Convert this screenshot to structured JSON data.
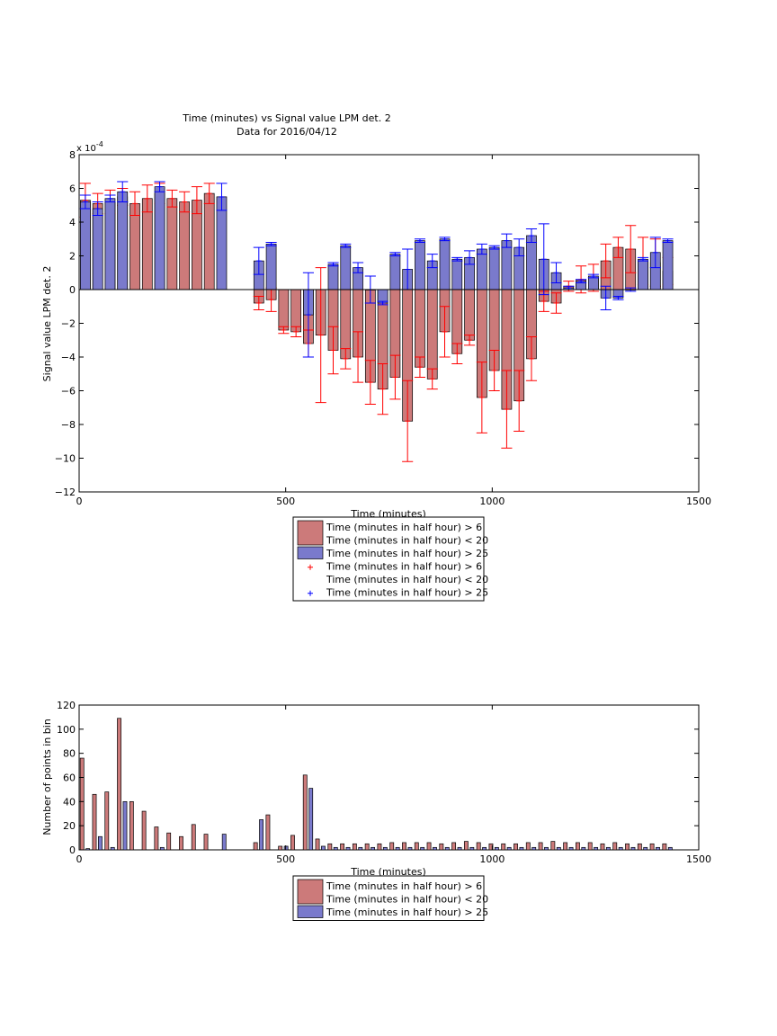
{
  "chart_data": [
    {
      "type": "bar",
      "title": "Time (minutes) vs Signal value LPM det. 2",
      "subtitle": "Data for 2016/04/12",
      "xlabel": "Time (minutes)",
      "ylabel": "Signal value LPM det. 2",
      "multiplier": "x 10",
      "multiplier_exp": "-4",
      "xlim": [
        0,
        1500
      ],
      "ylim": [
        -12,
        8
      ],
      "xticks": [
        0,
        500,
        1000,
        1500
      ],
      "yticks": [
        -12,
        -10,
        -8,
        -6,
        -4,
        -2,
        0,
        2,
        4,
        6,
        8
      ],
      "ytick_labels": [
        "−12",
        "−10",
        "−8",
        "−6",
        "−4",
        "−2",
        "0",
        "2",
        "4",
        "6",
        "8"
      ],
      "grid": false,
      "bar_width": 24,
      "legend_position": "below",
      "legend": [
        {
          "label": "Time (minutes in half hour) > 6",
          "kind": "swatch",
          "color": "#cc7a7a"
        },
        {
          "label": "Time (minutes in half hour) < 20",
          "kind": "none"
        },
        {
          "label": "Time (minutes in half hour) > 25",
          "kind": "swatch",
          "color": "#7a7acc"
        },
        {
          "label": "Time (minutes in half hour) > 6",
          "kind": "marker",
          "color": "#ff0000"
        },
        {
          "label": "Time (minutes in half hour) < 20",
          "kind": "none"
        },
        {
          "label": "Time (minutes in half hour) > 25",
          "kind": "marker",
          "color": "#0000ff"
        }
      ],
      "series": [
        {
          "name": "Time (minutes in half hour) > 6 / < 20",
          "color": "#cc7a7a",
          "error_color": "#ff0000",
          "points": [
            {
              "x": 15,
              "y": 5.3,
              "err": 1.0
            },
            {
              "x": 45,
              "y": 5.1,
              "err": 0.6
            },
            {
              "x": 75,
              "y": 5.2,
              "err": 0.7
            },
            {
              "x": 105,
              "y": 5.5,
              "err": 0.5
            },
            {
              "x": 135,
              "y": 5.1,
              "err": 0.7
            },
            {
              "x": 165,
              "y": 5.4,
              "err": 0.8
            },
            {
              "x": 195,
              "y": 5.7,
              "err": 0.6
            },
            {
              "x": 225,
              "y": 5.4,
              "err": 0.5
            },
            {
              "x": 255,
              "y": 5.2,
              "err": 0.6
            },
            {
              "x": 285,
              "y": 5.3,
              "err": 0.8
            },
            {
              "x": 315,
              "y": 5.7,
              "err": 0.6
            },
            {
              "x": 435,
              "y": -0.8,
              "err": 0.4
            },
            {
              "x": 465,
              "y": -0.6,
              "err": 0.7
            },
            {
              "x": 495,
              "y": -2.4,
              "err": 0.2
            },
            {
              "x": 525,
              "y": -2.5,
              "err": 0.3
            },
            {
              "x": 555,
              "y": -3.2,
              "err": 0.8
            },
            {
              "x": 585,
              "y": -2.7,
              "err": 4.0
            },
            {
              "x": 615,
              "y": -3.6,
              "err": 1.4
            },
            {
              "x": 645,
              "y": -4.1,
              "err": 0.6
            },
            {
              "x": 675,
              "y": -4.0,
              "err": 1.5
            },
            {
              "x": 705,
              "y": -5.5,
              "err": 1.3
            },
            {
              "x": 735,
              "y": -5.9,
              "err": 1.5
            },
            {
              "x": 765,
              "y": -5.2,
              "err": 1.3
            },
            {
              "x": 795,
              "y": -7.8,
              "err": 2.4
            },
            {
              "x": 825,
              "y": -4.6,
              "err": 0.6
            },
            {
              "x": 855,
              "y": -5.3,
              "err": 0.6
            },
            {
              "x": 885,
              "y": -2.5,
              "err": 1.5
            },
            {
              "x": 915,
              "y": -3.8,
              "err": 0.6
            },
            {
              "x": 945,
              "y": -3.0,
              "err": 0.3
            },
            {
              "x": 975,
              "y": -6.4,
              "err": 2.1
            },
            {
              "x": 1005,
              "y": -4.8,
              "err": 1.2
            },
            {
              "x": 1035,
              "y": -7.1,
              "err": 2.3
            },
            {
              "x": 1065,
              "y": -6.6,
              "err": 1.8
            },
            {
              "x": 1095,
              "y": -4.1,
              "err": 1.3
            },
            {
              "x": 1125,
              "y": -0.7,
              "err": 0.6
            },
            {
              "x": 1155,
              "y": -0.8,
              "err": 0.6
            },
            {
              "x": 1185,
              "y": 0.2,
              "err": 0.3
            },
            {
              "x": 1215,
              "y": 0.6,
              "err": 0.8
            },
            {
              "x": 1245,
              "y": 0.7,
              "err": 0.8
            },
            {
              "x": 1275,
              "y": 1.7,
              "err": 1.0
            },
            {
              "x": 1305,
              "y": 2.5,
              "err": 0.6
            },
            {
              "x": 1335,
              "y": 2.4,
              "err": 1.4
            },
            {
              "x": 1365,
              "y": 1.7,
              "err": 1.4
            },
            {
              "x": 1395,
              "y": 1.6,
              "err": 1.4
            },
            {
              "x": 1425,
              "y": 1.1,
              "err": 0.8
            }
          ]
        },
        {
          "name": "Time (minutes in half hour) > 25",
          "color": "#7a7acc",
          "error_color": "#0000ff",
          "points": [
            {
              "x": 15,
              "y": 5.2,
              "err": 0.4
            },
            {
              "x": 45,
              "y": 4.8,
              "err": 0.4
            },
            {
              "x": 75,
              "y": 5.4,
              "err": 0.2
            },
            {
              "x": 105,
              "y": 5.8,
              "err": 0.6
            },
            {
              "x": 195,
              "y": 6.1,
              "err": 0.3
            },
            {
              "x": 345,
              "y": 5.5,
              "err": 0.8
            },
            {
              "x": 435,
              "y": 1.7,
              "err": 0.8
            },
            {
              "x": 465,
              "y": 2.7,
              "err": 0.1
            },
            {
              "x": 555,
              "y": -1.5,
              "err": 2.5
            },
            {
              "x": 615,
              "y": 1.5,
              "err": 0.1
            },
            {
              "x": 645,
              "y": 2.6,
              "err": 0.1
            },
            {
              "x": 675,
              "y": 1.3,
              "err": 0.3
            },
            {
              "x": 705,
              "y": 0.0,
              "err": 0.8
            },
            {
              "x": 735,
              "y": -0.8,
              "err": 0.1
            },
            {
              "x": 765,
              "y": 2.1,
              "err": 0.1
            },
            {
              "x": 795,
              "y": 1.2,
              "err": 1.2
            },
            {
              "x": 825,
              "y": 2.9,
              "err": 0.1
            },
            {
              "x": 855,
              "y": 1.7,
              "err": 0.4
            },
            {
              "x": 885,
              "y": 3.0,
              "err": 0.1
            },
            {
              "x": 915,
              "y": 1.8,
              "err": 0.1
            },
            {
              "x": 945,
              "y": 1.9,
              "err": 0.4
            },
            {
              "x": 975,
              "y": 2.4,
              "err": 0.3
            },
            {
              "x": 1005,
              "y": 2.5,
              "err": 0.1
            },
            {
              "x": 1035,
              "y": 2.9,
              "err": 0.4
            },
            {
              "x": 1065,
              "y": 2.5,
              "err": 0.5
            },
            {
              "x": 1095,
              "y": 3.2,
              "err": 0.4
            },
            {
              "x": 1125,
              "y": 1.8,
              "err": 2.1
            },
            {
              "x": 1155,
              "y": 1.0,
              "err": 0.6
            },
            {
              "x": 1185,
              "y": 0.1,
              "err": 0.1
            },
            {
              "x": 1215,
              "y": 0.5,
              "err": 0.1
            },
            {
              "x": 1245,
              "y": 0.8,
              "err": 0.1
            },
            {
              "x": 1275,
              "y": -0.5,
              "err": 0.7
            },
            {
              "x": 1305,
              "y": -0.5,
              "err": 0.1
            },
            {
              "x": 1335,
              "y": 0.0,
              "err": 0.1
            },
            {
              "x": 1365,
              "y": 1.8,
              "err": 0.1
            },
            {
              "x": 1395,
              "y": 2.2,
              "err": 0.9
            },
            {
              "x": 1425,
              "y": 2.9,
              "err": 0.1
            }
          ]
        }
      ]
    },
    {
      "type": "bar",
      "title": "",
      "xlabel": "Time (minutes)",
      "ylabel": "Number of points in bin",
      "xlim": [
        0,
        1500
      ],
      "ylim": [
        0,
        120
      ],
      "xticks": [
        0,
        500,
        1000,
        1500
      ],
      "yticks": [
        0,
        20,
        40,
        60,
        80,
        100,
        120
      ],
      "grid": false,
      "bar_width": 9,
      "legend_position": "below",
      "legend": [
        {
          "label": "Time (minutes in half hour) > 6",
          "kind": "swatch",
          "color": "#cc7a7a"
        },
        {
          "label": "Time (minutes in half hour) < 20",
          "kind": "none"
        },
        {
          "label": "Time (minutes in half hour) > 25",
          "kind": "swatch",
          "color": "#7a7acc"
        }
      ],
      "series": [
        {
          "name": "Time (minutes in half hour) > 6 / < 20",
          "color": "#cc7a7a",
          "points": [
            {
              "x": 7,
              "y": 76
            },
            {
              "x": 37,
              "y": 46
            },
            {
              "x": 67,
              "y": 48
            },
            {
              "x": 97,
              "y": 109
            },
            {
              "x": 127,
              "y": 40
            },
            {
              "x": 157,
              "y": 32
            },
            {
              "x": 187,
              "y": 19
            },
            {
              "x": 217,
              "y": 14
            },
            {
              "x": 247,
              "y": 11
            },
            {
              "x": 277,
              "y": 21
            },
            {
              "x": 307,
              "y": 13
            },
            {
              "x": 427,
              "y": 6
            },
            {
              "x": 457,
              "y": 29
            },
            {
              "x": 487,
              "y": 3
            },
            {
              "x": 517,
              "y": 12
            },
            {
              "x": 547,
              "y": 62
            },
            {
              "x": 577,
              "y": 9
            },
            {
              "x": 607,
              "y": 5
            },
            {
              "x": 637,
              "y": 5
            },
            {
              "x": 667,
              "y": 5
            },
            {
              "x": 697,
              "y": 5
            },
            {
              "x": 727,
              "y": 5
            },
            {
              "x": 757,
              "y": 6
            },
            {
              "x": 787,
              "y": 6
            },
            {
              "x": 817,
              "y": 6
            },
            {
              "x": 847,
              "y": 6
            },
            {
              "x": 877,
              "y": 5
            },
            {
              "x": 907,
              "y": 6
            },
            {
              "x": 937,
              "y": 7
            },
            {
              "x": 967,
              "y": 6
            },
            {
              "x": 997,
              "y": 5
            },
            {
              "x": 1027,
              "y": 5
            },
            {
              "x": 1057,
              "y": 5
            },
            {
              "x": 1087,
              "y": 6
            },
            {
              "x": 1117,
              "y": 6
            },
            {
              "x": 1147,
              "y": 7
            },
            {
              "x": 1177,
              "y": 6
            },
            {
              "x": 1207,
              "y": 6
            },
            {
              "x": 1237,
              "y": 6
            },
            {
              "x": 1267,
              "y": 5
            },
            {
              "x": 1297,
              "y": 6
            },
            {
              "x": 1327,
              "y": 5
            },
            {
              "x": 1357,
              "y": 5
            },
            {
              "x": 1387,
              "y": 5
            },
            {
              "x": 1417,
              "y": 5
            }
          ]
        },
        {
          "name": "Time (minutes in half hour) > 25",
          "color": "#7a7acc",
          "points": [
            {
              "x": 21,
              "y": 1
            },
            {
              "x": 51,
              "y": 11
            },
            {
              "x": 81,
              "y": 2
            },
            {
              "x": 111,
              "y": 40
            },
            {
              "x": 201,
              "y": 2
            },
            {
              "x": 351,
              "y": 13
            },
            {
              "x": 441,
              "y": 25
            },
            {
              "x": 501,
              "y": 3
            },
            {
              "x": 561,
              "y": 51
            },
            {
              "x": 591,
              "y": 3
            },
            {
              "x": 621,
              "y": 2
            },
            {
              "x": 651,
              "y": 2
            },
            {
              "x": 681,
              "y": 2
            },
            {
              "x": 711,
              "y": 2
            },
            {
              "x": 741,
              "y": 2
            },
            {
              "x": 771,
              "y": 2
            },
            {
              "x": 801,
              "y": 2
            },
            {
              "x": 831,
              "y": 2
            },
            {
              "x": 861,
              "y": 2
            },
            {
              "x": 891,
              "y": 2
            },
            {
              "x": 921,
              "y": 2
            },
            {
              "x": 951,
              "y": 2
            },
            {
              "x": 981,
              "y": 2
            },
            {
              "x": 1011,
              "y": 2
            },
            {
              "x": 1041,
              "y": 2
            },
            {
              "x": 1071,
              "y": 2
            },
            {
              "x": 1101,
              "y": 2
            },
            {
              "x": 1131,
              "y": 2
            },
            {
              "x": 1161,
              "y": 2
            },
            {
              "x": 1191,
              "y": 2
            },
            {
              "x": 1221,
              "y": 2
            },
            {
              "x": 1251,
              "y": 2
            },
            {
              "x": 1281,
              "y": 2
            },
            {
              "x": 1311,
              "y": 2
            },
            {
              "x": 1341,
              "y": 2
            },
            {
              "x": 1371,
              "y": 2
            },
            {
              "x": 1401,
              "y": 2
            },
            {
              "x": 1431,
              "y": 2
            }
          ]
        }
      ]
    }
  ]
}
